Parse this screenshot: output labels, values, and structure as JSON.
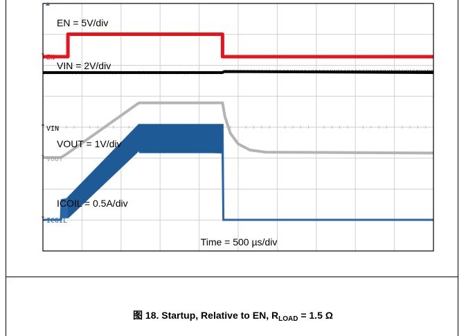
{
  "chart_data": {
    "type": "line",
    "title": "",
    "x_units": "µs",
    "time_scale_label": "Time = 500 µs/div",
    "xlim": [
      0,
      5000
    ],
    "grid": true,
    "divisions": {
      "x": 10,
      "y": 8
    },
    "channels": [
      {
        "name": "EN",
        "marker": "EN",
        "scale_label": "EN = 5V/div",
        "color": "#e8141c",
        "units": "V",
        "points": [
          [
            0,
            0
          ],
          [
            320,
            0
          ],
          [
            320,
            5
          ],
          [
            2300,
            5
          ],
          [
            2300,
            0
          ],
          [
            5000,
            0
          ]
        ]
      },
      {
        "name": "VIN",
        "marker": "VIN",
        "scale_label": "VIN = 2V/div",
        "color": "#000000",
        "units": "V",
        "points": [
          [
            0,
            5
          ],
          [
            2300,
            5
          ],
          [
            2320,
            5.1
          ],
          [
            5000,
            5
          ]
        ]
      },
      {
        "name": "VOUT",
        "marker": "VOUT",
        "scale_label": "VOUT = 1V/div",
        "color": "#b4b4b4",
        "units": "V",
        "points": [
          [
            0,
            0
          ],
          [
            230,
            0
          ],
          [
            320,
            0.15
          ],
          [
            1230,
            1.8
          ],
          [
            2300,
            1.8
          ],
          [
            2330,
            1.35
          ],
          [
            2400,
            0.8
          ],
          [
            2500,
            0.45
          ],
          [
            2650,
            0.25
          ],
          [
            2850,
            0.18
          ],
          [
            5000,
            0.15
          ]
        ]
      },
      {
        "name": "ICOIL",
        "marker": "ICOIL",
        "scale_label": "ICOIL = 0.5A/div",
        "color": "#2a66a6",
        "units": "A",
        "envelope": [
          [
            0,
            0,
            0
          ],
          [
            230,
            0,
            0
          ],
          [
            240,
            0.05,
            0.38
          ],
          [
            310,
            0.05,
            0.4
          ],
          [
            320,
            0.05,
            0.42
          ],
          [
            1230,
            1.35,
            1.83
          ],
          [
            2300,
            1.3,
            1.83
          ],
          [
            2310,
            0,
            0
          ],
          [
            5000,
            0,
            0
          ]
        ]
      }
    ]
  },
  "caption": {
    "prefix": "图 18. Startup, Relative to EN, R",
    "subscript": "LOAD",
    "suffix": " = 1.5 Ω"
  }
}
